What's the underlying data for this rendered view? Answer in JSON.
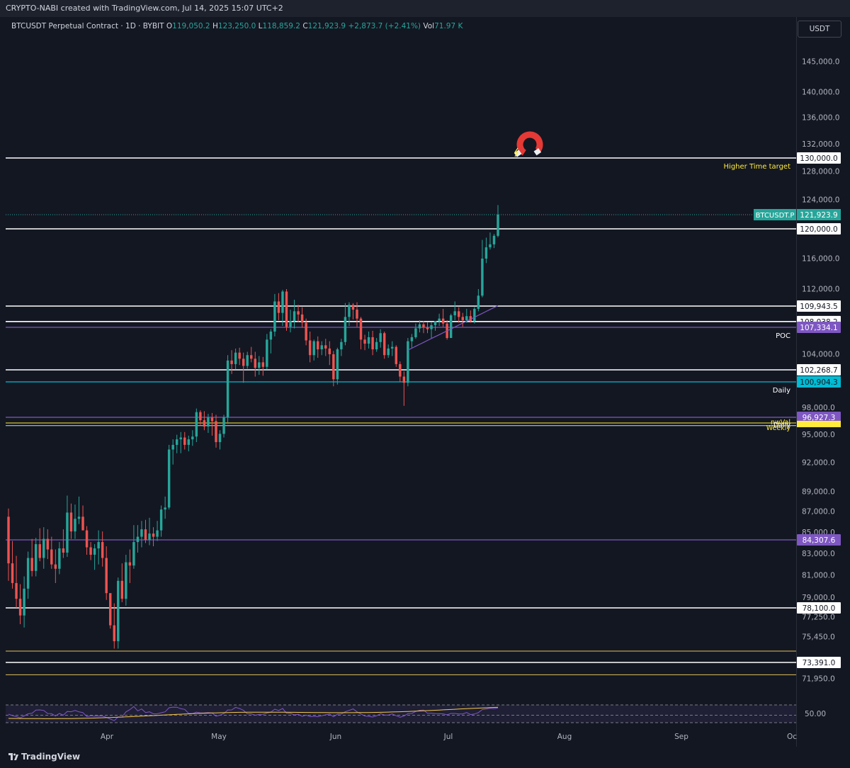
{
  "header": {
    "credit": "CRYPTO-NABI created with TradingView.com, Jul 14, 2025 15:07 UTC+2"
  },
  "legend": {
    "symbol": "BTCUSDT Perpetual Contract · 1D · BYBIT",
    "o_label": "O",
    "o_value": "119,050.2",
    "h_label": "H",
    "h_value": "123,250.0",
    "l_label": "L",
    "l_value": "118,859.2",
    "c_label": "C",
    "c_value": "121,923.9",
    "change": "+2,873.7 (+2.41%)",
    "vol_label": "Vol",
    "vol_value": "71.97 K"
  },
  "currency_button": "USDT",
  "footer": {
    "brand": "TradingView"
  },
  "colors": {
    "background": "#131722",
    "up": "#26a69a",
    "down": "#ef5350",
    "level_white": "#ffffff",
    "poc_purple": "#7e57c2",
    "daily_cyan": "#00bcd4",
    "yellow": "#ffeb3b",
    "target_label": "#ffeb3b"
  },
  "icons": {
    "target_marker": "magnet-icon"
  },
  "chart_data": {
    "type": "candlestick",
    "y_ticks": [
      "145,000.0",
      "140,000.0",
      "136,000.0",
      "132,000.0",
      "128,000.0",
      "124,000.0",
      "116,000.0",
      "112,000.0",
      "104,000.0",
      "98,000.0",
      "95,000.0",
      "92,000.0",
      "89,000.0",
      "87,000.0",
      "85,000.0",
      "83,000.0",
      "81,000.0",
      "79,000.0",
      "77,250.0",
      "75,450.0",
      "71,950.0"
    ],
    "x_ticks": [
      "Apr",
      "May",
      "Jun",
      "Jul",
      "Aug",
      "Sep",
      "Oc"
    ],
    "last_price": {
      "label": "BTCUSDT.P",
      "value": "121,923.9"
    },
    "levels": [
      {
        "value": 130000,
        "label": "130,000.0",
        "color": "#ffffff",
        "note": "Higher Time target"
      },
      {
        "value": 120000,
        "label": "120,000.0",
        "color": "#ffffff",
        "note": ""
      },
      {
        "value": 109943.5,
        "label": "109,943.5",
        "color": "#ffffff",
        "note": ""
      },
      {
        "value": 108038.2,
        "label": "108,038.2",
        "color": "#ffffff",
        "note": ""
      },
      {
        "value": 107334.1,
        "label": "107,334.1",
        "color": "#7e57c2",
        "note": "POC"
      },
      {
        "value": 102268.7,
        "label": "102,268.7",
        "color": "#ffffff",
        "note": ""
      },
      {
        "value": 100904.3,
        "label": "100,904.3",
        "color": "#00bcd4",
        "note": "Daily"
      },
      {
        "value": 96927.3,
        "label": "96,927.3",
        "color": "#7e57c2",
        "note": ""
      },
      {
        "value": 84307.6,
        "label": "84,307.6",
        "color": "#7e57c2",
        "note": ""
      },
      {
        "value": 78100,
        "label": "78,100.0",
        "color": "#ffffff",
        "note": ""
      },
      {
        "value": 73391,
        "label": "73,391.0",
        "color": "#ffffff",
        "note": ""
      }
    ],
    "stacked_notes": [
      "nwVal",
      "Daily",
      "Weekly"
    ],
    "rsi_label": "50.00",
    "candles": [
      [
        86500,
        87300,
        80500,
        82100
      ],
      [
        82100,
        84200,
        79800,
        80300
      ],
      [
        80300,
        82800,
        78100,
        78900
      ],
      [
        78900,
        80200,
        76600,
        77400
      ],
      [
        77400,
        80900,
        76300,
        79800
      ],
      [
        79800,
        83200,
        78900,
        82600
      ],
      [
        82600,
        84400,
        80900,
        81400
      ],
      [
        81400,
        84500,
        80900,
        83900
      ],
      [
        83900,
        85400,
        82300,
        82600
      ],
      [
        82600,
        85500,
        81600,
        84400
      ],
      [
        84400,
        85300,
        82500,
        83400
      ],
      [
        83400,
        84600,
        81600,
        82000
      ],
      [
        82000,
        83400,
        80300,
        81600
      ],
      [
        81600,
        84100,
        81100,
        83500
      ],
      [
        83500,
        85300,
        82600,
        83100
      ],
      [
        83100,
        88600,
        82700,
        86900
      ],
      [
        86900,
        87800,
        84400,
        85100
      ],
      [
        85100,
        87700,
        84400,
        86300
      ],
      [
        86300,
        88500,
        85800,
        86500
      ],
      [
        86500,
        87600,
        85300,
        85200
      ],
      [
        85200,
        85600,
        82900,
        83600
      ],
      [
        83600,
        84100,
        82400,
        82900
      ],
      [
        82900,
        83900,
        81500,
        83500
      ],
      [
        83500,
        85200,
        82000,
        84100
      ],
      [
        84100,
        85100,
        81800,
        82600
      ],
      [
        82600,
        83700,
        78800,
        79400
      ],
      [
        79400,
        79400,
        76200,
        76500
      ],
      [
        76500,
        78500,
        74500,
        75100
      ],
      [
        75100,
        80800,
        74500,
        80500
      ],
      [
        80500,
        82100,
        78600,
        78900
      ],
      [
        78900,
        82900,
        78300,
        82200
      ],
      [
        82200,
        83400,
        80300,
        81900
      ],
      [
        81900,
        85700,
        81600,
        84100
      ],
      [
        84100,
        85700,
        83100,
        84600
      ],
      [
        84600,
        86100,
        83600,
        85300
      ],
      [
        85300,
        86200,
        84000,
        84300
      ],
      [
        84300,
        86400,
        83800,
        84900
      ],
      [
        84900,
        85500,
        83700,
        84600
      ],
      [
        84600,
        86100,
        84200,
        85200
      ],
      [
        85200,
        87600,
        84600,
        87200
      ],
      [
        87200,
        88500,
        86300,
        87400
      ],
      [
        87400,
        93900,
        87200,
        93400
      ],
      [
        93400,
        94500,
        91800,
        93900
      ],
      [
        93900,
        95000,
        93000,
        94500
      ],
      [
        94500,
        95300,
        93000,
        94700
      ],
      [
        94700,
        95300,
        93400,
        93900
      ],
      [
        93900,
        94900,
        93200,
        94500
      ],
      [
        94500,
        95500,
        93800,
        94800
      ],
      [
        94800,
        97900,
        94200,
        97500
      ],
      [
        97500,
        97700,
        96100,
        96600
      ],
      [
        96600,
        97600,
        95500,
        95900
      ],
      [
        95900,
        97300,
        95200,
        96900
      ],
      [
        96900,
        97400,
        94900,
        96500
      ],
      [
        96500,
        97200,
        93600,
        94200
      ],
      [
        94200,
        95500,
        93400,
        95100
      ],
      [
        95100,
        97200,
        94700,
        96900
      ],
      [
        96900,
        103900,
        96200,
        103300
      ],
      [
        103300,
        104500,
        101800,
        102900
      ],
      [
        102900,
        104700,
        102300,
        104200
      ],
      [
        104200,
        104800,
        102800,
        103500
      ],
      [
        103500,
        104200,
        100800,
        102700
      ],
      [
        102700,
        104300,
        102400,
        103900
      ],
      [
        103900,
        104900,
        103100,
        103500
      ],
      [
        103500,
        104300,
        101500,
        102500
      ],
      [
        102500,
        103800,
        101700,
        103100
      ],
      [
        103100,
        103700,
        101600,
        102600
      ],
      [
        102600,
        106500,
        102300,
        105800
      ],
      [
        105800,
        107100,
        104100,
        106800
      ],
      [
        106800,
        111400,
        106200,
        110500
      ],
      [
        110500,
        111500,
        108200,
        109100
      ],
      [
        109100,
        111900,
        107500,
        111700
      ],
      [
        111700,
        112000,
        106900,
        107400
      ],
      [
        107400,
        109500,
        106700,
        108100
      ],
      [
        108100,
        110700,
        107200,
        109300
      ],
      [
        109300,
        110100,
        108000,
        108900
      ],
      [
        108900,
        109800,
        107300,
        107900
      ],
      [
        107900,
        108400,
        105100,
        105700
      ],
      [
        105700,
        106800,
        103100,
        103900
      ],
      [
        103900,
        105800,
        103300,
        105600
      ],
      [
        105600,
        106200,
        103600,
        104600
      ],
      [
        104600,
        105600,
        103900,
        105100
      ],
      [
        105100,
        105900,
        103800,
        104700
      ],
      [
        104700,
        105600,
        102800,
        104000
      ],
      [
        104000,
        104400,
        100400,
        101200
      ],
      [
        101200,
        104800,
        100600,
        104600
      ],
      [
        104600,
        105900,
        103800,
        105500
      ],
      [
        105500,
        110300,
        105100,
        108600
      ],
      [
        108600,
        110400,
        107500,
        110100
      ],
      [
        110100,
        110300,
        108300,
        109500
      ],
      [
        109500,
        110400,
        107400,
        108400
      ],
      [
        108400,
        108600,
        104600,
        105800
      ],
      [
        105800,
        106400,
        104500,
        105300
      ],
      [
        105300,
        106800,
        104700,
        106100
      ],
      [
        106100,
        106900,
        103900,
        104600
      ],
      [
        104600,
        106000,
        104300,
        105500
      ],
      [
        105500,
        107100,
        104800,
        106600
      ],
      [
        106600,
        106800,
        103500,
        103900
      ],
      [
        103900,
        105200,
        103600,
        104700
      ],
      [
        104700,
        105600,
        103800,
        104900
      ],
      [
        104900,
        105100,
        102600,
        102900
      ],
      [
        102900,
        103200,
        100900,
        101500
      ],
      [
        101500,
        102100,
        98200,
        100800
      ],
      [
        100800,
        106000,
        100400,
        105600
      ],
      [
        105600,
        106500,
        104800,
        106100
      ],
      [
        106100,
        107800,
        105900,
        107200
      ],
      [
        107200,
        108200,
        106700,
        107700
      ],
      [
        107700,
        108100,
        106600,
        107300
      ],
      [
        107300,
        108000,
        106600,
        107100
      ],
      [
        107100,
        108000,
        106000,
        107600
      ],
      [
        107600,
        107900,
        106900,
        108100
      ],
      [
        108100,
        109000,
        107500,
        108400
      ],
      [
        108400,
        109600,
        107400,
        107800
      ],
      [
        107800,
        108200,
        105800,
        106000
      ],
      [
        106000,
        109000,
        106000,
        108800
      ],
      [
        108800,
        110500,
        108200,
        109300
      ],
      [
        109300,
        109800,
        107900,
        108600
      ],
      [
        108600,
        109100,
        107400,
        108200
      ],
      [
        108200,
        109600,
        107900,
        108700
      ],
      [
        108700,
        109400,
        107900,
        108100
      ],
      [
        108100,
        109800,
        107800,
        109600
      ],
      [
        109600,
        112000,
        109300,
        111200
      ],
      [
        111200,
        118500,
        111000,
        116000
      ],
      [
        116000,
        118800,
        115400,
        117500
      ],
      [
        117500,
        119500,
        117200,
        117900
      ],
      [
        117900,
        119300,
        117400,
        119050
      ],
      [
        119050,
        123250,
        118859,
        121924
      ]
    ]
  }
}
